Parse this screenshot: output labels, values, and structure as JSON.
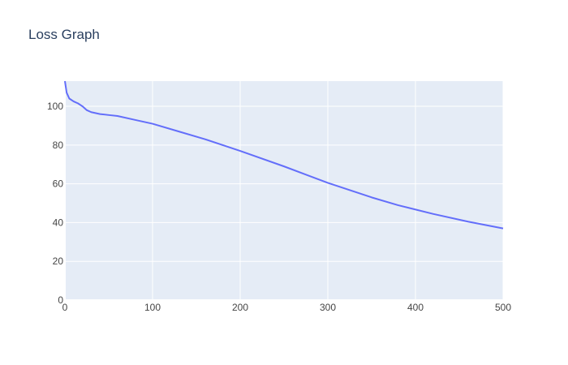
{
  "chart_data": {
    "type": "line",
    "title": "Loss Graph",
    "xlabel": "",
    "ylabel": "",
    "xlim": [
      0,
      500
    ],
    "ylim": [
      0,
      113
    ],
    "x_ticks": [
      0,
      100,
      200,
      300,
      400,
      500
    ],
    "y_ticks": [
      0,
      20,
      40,
      60,
      80,
      100
    ],
    "grid": true,
    "colors": {
      "background": "#ffffff",
      "plot_background": "#e5ecf6",
      "grid": "#ffffff",
      "line": "#636efa",
      "text": "#2a3f5f",
      "tick_text": "#444444"
    },
    "series": [
      {
        "x": [
          0,
          2,
          5,
          10,
          15,
          20,
          25,
          30,
          40,
          50,
          60,
          80,
          100,
          130,
          160,
          200,
          250,
          300,
          350,
          380,
          420,
          460,
          500
        ],
        "y": [
          113,
          107,
          104,
          102.5,
          101.5,
          100,
          98,
          97,
          96,
          95.5,
          95,
          93,
          91,
          87,
          83,
          77,
          69,
          60.5,
          53,
          49,
          44.5,
          40.5,
          37
        ]
      }
    ]
  }
}
